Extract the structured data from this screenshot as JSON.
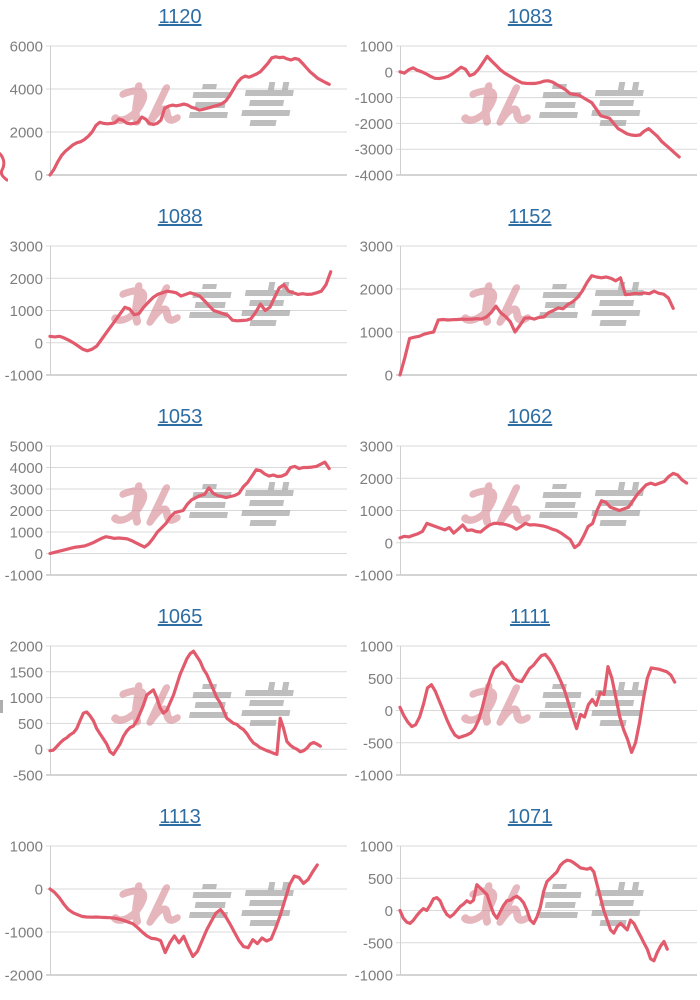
{
  "watermark": {
    "text": "みんレポ",
    "pink_text": "みん",
    "gray_text": "レポ"
  },
  "colors": {
    "line": "#e25b6d",
    "title_link": "#2d6da3",
    "tick_label": "#7e7e7e",
    "gridline": "#d9d9d9",
    "axis_bottom": "#a8a8a8",
    "axis_left": "#cfcfcf",
    "watermark_pink": "#d78a95",
    "watermark_gray": "#a0a0a0",
    "background": "#ffffff"
  },
  "chart_data": [
    {
      "type": "line",
      "title": "1120",
      "xlabel": "",
      "ylabel": "",
      "y_ticks": [
        6000,
        4000,
        2000,
        0
      ],
      "ylim": [
        0,
        6000
      ],
      "end_frac": 0.94,
      "values": [
        0,
        250,
        600,
        900,
        1100,
        1250,
        1400,
        1500,
        1550,
        1650,
        1800,
        2000,
        2300,
        2450,
        2400,
        2380,
        2400,
        2430,
        2600,
        2550,
        2420,
        2380,
        2400,
        2450,
        2700,
        2600,
        2400,
        2350,
        2400,
        2550,
        3100,
        3200,
        3250,
        3220,
        3250,
        3300,
        3250,
        3150,
        3100,
        3020,
        3050,
        3100,
        3150,
        3200,
        3250,
        3320,
        3450,
        3700,
        4000,
        4300,
        4500,
        4600,
        4550,
        4620,
        4700,
        4800,
        5000,
        5200,
        5450,
        5500,
        5460,
        5480,
        5400,
        5350,
        5420,
        5380,
        5200,
        5000,
        4800,
        4650,
        4500,
        4400,
        4300,
        4220
      ]
    },
    {
      "type": "line",
      "title": "1083",
      "xlabel": "",
      "ylabel": "",
      "y_ticks": [
        1000,
        0,
        -1000,
        -2000,
        -3000,
        -4000
      ],
      "ylim": [
        -4000,
        1000
      ],
      "end_frac": 0.94,
      "values": [
        0,
        -50,
        80,
        150,
        60,
        0,
        -80,
        -180,
        -250,
        -260,
        -230,
        -180,
        -80,
        50,
        180,
        100,
        -150,
        -80,
        100,
        350,
        600,
        420,
        250,
        80,
        -50,
        -150,
        -250,
        -350,
        -430,
        -450,
        -455,
        -450,
        -420,
        -360,
        -350,
        -400,
        -500,
        -600,
        -700,
        -850,
        -880,
        -900,
        -1000,
        -1100,
        -1200,
        -1450,
        -1700,
        -1750,
        -1800,
        -2000,
        -2200,
        -2300,
        -2400,
        -2450,
        -2470,
        -2450,
        -2300,
        -2200,
        -2350,
        -2500,
        -2700,
        -2850,
        -3000,
        -3150,
        -3300
      ]
    },
    {
      "type": "line",
      "title": "1088",
      "xlabel": "",
      "ylabel": "",
      "y_ticks": [
        3000,
        2000,
        1000,
        0,
        -1000
      ],
      "ylim": [
        -1000,
        3000
      ],
      "end_frac": 0.945,
      "values": [
        200,
        180,
        200,
        150,
        80,
        0,
        -100,
        -200,
        -250,
        -200,
        -100,
        100,
        300,
        500,
        700,
        900,
        1100,
        1050,
        870,
        900,
        1100,
        1250,
        1400,
        1500,
        1550,
        1600,
        1580,
        1550,
        1450,
        1500,
        1550,
        1500,
        1450,
        1300,
        1150,
        1000,
        950,
        900,
        850,
        700,
        680,
        690,
        700,
        750,
        950,
        1200,
        1000,
        1100,
        1400,
        1700,
        1800,
        1600,
        1550,
        1500,
        1520,
        1500,
        1510,
        1550,
        1600,
        1800,
        2200
      ]
    },
    {
      "type": "line",
      "title": "1152",
      "xlabel": "",
      "ylabel": "",
      "y_ticks": [
        3000,
        2000,
        1000,
        0
      ],
      "ylim": [
        0,
        3000
      ],
      "end_frac": 0.92,
      "values": [
        0,
        400,
        850,
        880,
        900,
        950,
        980,
        1000,
        1280,
        1290,
        1280,
        1285,
        1290,
        1300,
        1295,
        1300,
        1310,
        1300,
        1350,
        1450,
        1600,
        1450,
        1360,
        1240,
        1000,
        1150,
        1320,
        1330,
        1300,
        1340,
        1350,
        1450,
        1500,
        1560,
        1540,
        1640,
        1700,
        1800,
        1950,
        2150,
        2310,
        2280,
        2260,
        2280,
        2250,
        2190,
        2260,
        1870,
        1880,
        1900,
        1890,
        1910,
        1890,
        1950,
        1900,
        1880,
        1790,
        1550
      ]
    },
    {
      "type": "line",
      "title": "1053",
      "xlabel": "",
      "ylabel": "",
      "y_ticks": [
        5000,
        4000,
        3000,
        2000,
        1000,
        0,
        -1000
      ],
      "ylim": [
        -1000,
        5000
      ],
      "end_frac": 0.94,
      "values": [
        0,
        50,
        100,
        150,
        200,
        250,
        300,
        320,
        350,
        420,
        500,
        600,
        700,
        780,
        750,
        700,
        720,
        700,
        680,
        600,
        500,
        400,
        300,
        450,
        700,
        1000,
        1200,
        1400,
        1700,
        1900,
        1950,
        2000,
        2300,
        2500,
        2600,
        2700,
        2750,
        3050,
        2800,
        2700,
        2650,
        2600,
        2650,
        2700,
        2800,
        3100,
        3300,
        3600,
        3900,
        3850,
        3700,
        3600,
        3650,
        3580,
        3600,
        3700,
        4000,
        4050,
        3950,
        4000,
        4000,
        4020,
        4050,
        4150,
        4250,
        3950
      ]
    },
    {
      "type": "line",
      "title": "1062",
      "xlabel": "",
      "ylabel": "",
      "y_ticks": [
        3000,
        2000,
        1000,
        0,
        -1000
      ],
      "ylim": [
        -1000,
        3000
      ],
      "end_frac": 0.965,
      "values": [
        150,
        200,
        180,
        230,
        280,
        350,
        600,
        550,
        500,
        450,
        400,
        470,
        300,
        420,
        550,
        380,
        400,
        350,
        330,
        450,
        550,
        600,
        600,
        580,
        550,
        500,
        420,
        500,
        600,
        550,
        560,
        540,
        520,
        480,
        420,
        380,
        300,
        200,
        100,
        -150,
        -50,
        200,
        500,
        600,
        1000,
        1300,
        1250,
        1100,
        1050,
        1000,
        1050,
        1100,
        1300,
        1500,
        1650,
        1800,
        1850,
        1800,
        1850,
        1900,
        2050,
        2150,
        2100,
        1950,
        1850
      ]
    },
    {
      "type": "line",
      "title": "1065",
      "xlabel": "",
      "ylabel": "",
      "y_ticks": [
        2000,
        1500,
        1000,
        500,
        0,
        -500
      ],
      "ylim": [
        -500,
        2000
      ],
      "end_frac": 0.91,
      "values": [
        -30,
        -20,
        50,
        120,
        180,
        220,
        280,
        320,
        400,
        550,
        700,
        720,
        650,
        550,
        400,
        300,
        200,
        100,
        -50,
        -100,
        0,
        100,
        250,
        350,
        420,
        450,
        550,
        700,
        850,
        1050,
        1100,
        1150,
        1000,
        800,
        700,
        750,
        900,
        1050,
        1250,
        1450,
        1600,
        1750,
        1850,
        1900,
        1800,
        1700,
        1550,
        1450,
        1300,
        1150,
        1000,
        900,
        750,
        600,
        550,
        500,
        480,
        420,
        380,
        300,
        200,
        120,
        80,
        30,
        0,
        -30,
        -50,
        -80,
        -100,
        600,
        400,
        150,
        80,
        30,
        0,
        -50,
        -30,
        20,
        100,
        130,
        100,
        60
      ]
    },
    {
      "type": "line",
      "title": "1111",
      "xlabel": "",
      "ylabel": "",
      "y_ticks": [
        1000,
        500,
        0,
        -500,
        -1000
      ],
      "ylim": [
        -1000,
        1000
      ],
      "end_frac": 0.925,
      "values": [
        50,
        -80,
        -180,
        -250,
        -220,
        -100,
        100,
        350,
        400,
        300,
        150,
        0,
        -150,
        -280,
        -380,
        -420,
        -400,
        -380,
        -350,
        -280,
        -150,
        50,
        300,
        500,
        650,
        700,
        750,
        700,
        600,
        500,
        460,
        450,
        550,
        650,
        700,
        780,
        850,
        870,
        800,
        700,
        580,
        450,
        300,
        100,
        -100,
        -280,
        -60,
        -100,
        90,
        170,
        80,
        280,
        250,
        680,
        500,
        200,
        -100,
        -300,
        -450,
        -650,
        -500,
        -200,
        170,
        500,
        660,
        650,
        640,
        620,
        600,
        550,
        440
      ]
    },
    {
      "type": "line",
      "title": "1113",
      "xlabel": "",
      "ylabel": "",
      "y_ticks": [
        1000,
        0,
        -1000,
        -2000
      ],
      "ylim": [
        -2000,
        1000
      ],
      "end_frac": 0.9,
      "values": [
        0,
        -80,
        -200,
        -350,
        -480,
        -550,
        -600,
        -640,
        -650,
        -655,
        -650,
        -658,
        -662,
        -668,
        -680,
        -700,
        -730,
        -770,
        -810,
        -900,
        -1000,
        -1090,
        -1150,
        -1160,
        -1200,
        -1480,
        -1250,
        -1090,
        -1250,
        -1100,
        -1350,
        -1570,
        -1450,
        -1200,
        -950,
        -750,
        -560,
        -480,
        -620,
        -800,
        -1000,
        -1200,
        -1340,
        -1365,
        -1180,
        -1270,
        -1140,
        -1210,
        -1160,
        -900,
        -600,
        -250,
        100,
        300,
        270,
        130,
        220,
        400,
        560
      ]
    },
    {
      "type": "line",
      "title": "1071",
      "xlabel": "",
      "ylabel": "",
      "y_ticks": [
        1000,
        500,
        0,
        -500,
        -1000
      ],
      "ylim": [
        -1000,
        1000
      ],
      "end_frac": 0.9,
      "values": [
        0,
        -120,
        -180,
        -200,
        -150,
        -80,
        -20,
        30,
        0,
        80,
        180,
        200,
        150,
        30,
        -60,
        -100,
        -60,
        0,
        60,
        100,
        150,
        120,
        160,
        400,
        350,
        300,
        250,
        100,
        -50,
        -120,
        -20,
        80,
        150,
        160,
        200,
        220,
        180,
        120,
        0,
        -150,
        -200,
        -100,
        50,
        300,
        450,
        500,
        550,
        600,
        700,
        750,
        780,
        770,
        740,
        700,
        660,
        650,
        640,
        660,
        600,
        400,
        200,
        0,
        -150,
        -300,
        -350,
        -250,
        -200,
        -250,
        -300,
        -150,
        -200,
        -300,
        -400,
        -500,
        -600,
        -750,
        -780,
        -650,
        -550,
        -480,
        -600
      ]
    }
  ]
}
